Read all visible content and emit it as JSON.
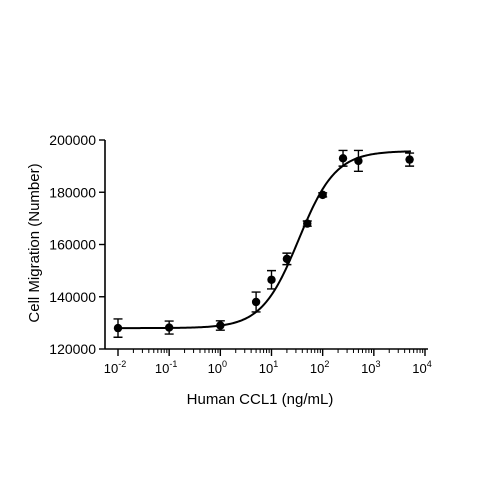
{
  "chart_data": {
    "type": "scatter",
    "title": "",
    "xlabel": "Human CCL1 (ng/mL)",
    "ylabel": "Cell Migration (Number)",
    "x_scale": "log",
    "xlim": [
      0.01,
      10000
    ],
    "ylim": [
      120000,
      200000
    ],
    "x_ticks": [
      {
        "base": "10",
        "exp": "-2"
      },
      {
        "base": "10",
        "exp": "-1"
      },
      {
        "base": "10",
        "exp": "0"
      },
      {
        "base": "10",
        "exp": "1"
      },
      {
        "base": "10",
        "exp": "2"
      },
      {
        "base": "10",
        "exp": "3"
      },
      {
        "base": "10",
        "exp": "4"
      }
    ],
    "y_ticks": [
      "120000",
      "140000",
      "160000",
      "180000",
      "200000"
    ],
    "series": [
      {
        "x": [
          0.01,
          0.1,
          1,
          5,
          10,
          20,
          50,
          100,
          250,
          500,
          5000
        ],
        "y": [
          128000,
          128200,
          129000,
          138000,
          146500,
          154500,
          168000,
          179000,
          193000,
          192000,
          192500
        ],
        "err": [
          3500,
          2500,
          1800,
          3800,
          3500,
          2200,
          1000,
          800,
          3000,
          4000,
          2500
        ],
        "fit": {
          "bottom": 128000,
          "top": 195800,
          "ec50": 34,
          "hill": 1.2
        }
      }
    ],
    "grid": false,
    "legend": "none",
    "marker_color": "#000000"
  }
}
